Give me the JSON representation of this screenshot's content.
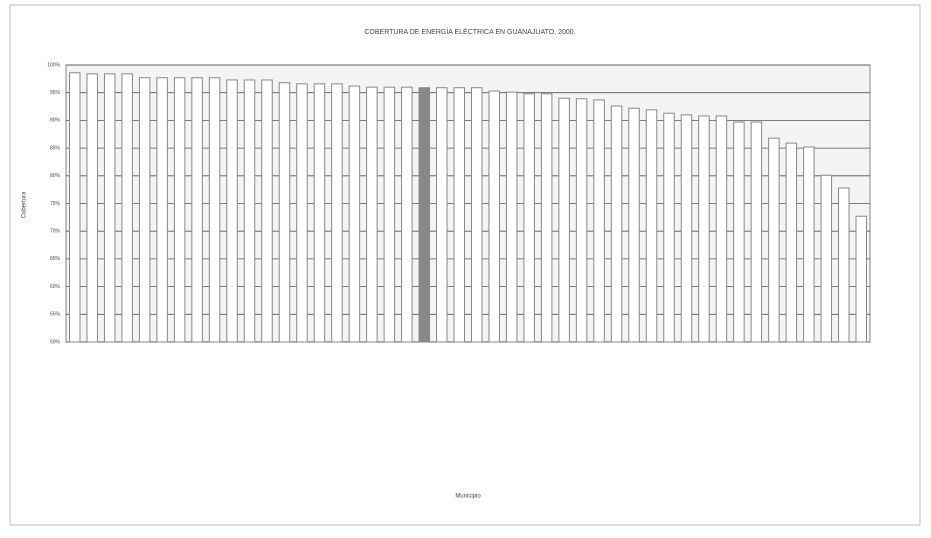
{
  "chart_data": {
    "type": "bar",
    "title": "COBERTURA DE ENERGÍA ELÉCTRICA EN GUANAJUATO, 2000.",
    "ylabel": "Cobertura",
    "xlabel": "Municipio",
    "categories": [
      null,
      null,
      null,
      null,
      null,
      null,
      null,
      null,
      null,
      null,
      null,
      null,
      null,
      null,
      null,
      null,
      null,
      null,
      null,
      null,
      null,
      null,
      null,
      null,
      null,
      null,
      null,
      null,
      null,
      null,
      null,
      null,
      null,
      null,
      null,
      null,
      null,
      null,
      null,
      null,
      null,
      null,
      null,
      null,
      null,
      null
    ],
    "values": [
      98.6,
      98.4,
      98.4,
      98.4,
      97.7,
      97.7,
      97.7,
      97.7,
      97.7,
      97.3,
      97.3,
      97.3,
      96.8,
      96.6,
      96.6,
      96.6,
      96.2,
      96.0,
      96.0,
      96.0,
      95.9,
      95.9,
      95.9,
      95.9,
      95.3,
      95.1,
      94.8,
      94.8,
      94.0,
      93.9,
      93.7,
      92.6,
      92.2,
      91.9,
      91.3,
      91.0,
      90.8,
      90.8,
      89.7,
      89.7,
      86.8,
      85.9,
      85.2,
      80.1,
      77.8,
      72.7
    ],
    "color": "#ffffff",
    "colors": [
      "#fff",
      "#fff",
      "#fff",
      "#fff",
      "#fff",
      "#fff",
      "#fff",
      "#fff",
      "#fff",
      "#fff",
      "#fff",
      "#fff",
      "#fff",
      "#fff",
      "#fff",
      "#fff",
      "#fff",
      "#fff",
      "#fff",
      "#fff",
      "#888",
      "#fff",
      "#fff",
      "#fff",
      "#fff",
      "#fff",
      "#fff",
      "#fff",
      "#fff",
      "#fff",
      "#fff",
      "#fff",
      "#fff",
      "#fff",
      "#fff",
      "#fff",
      "#fff",
      "#fff",
      "#fff",
      "#fff",
      "#fff",
      "#fff",
      "#fff",
      "#fff",
      "#fff",
      "#fff"
    ],
    "ylim": [
      50,
      100
    ],
    "yticks": [
      {
        "value": 50,
        "label": "50%"
      },
      {
        "value": 55,
        "label": "55%"
      },
      {
        "value": 60,
        "label": "60%"
      },
      {
        "value": 65,
        "label": "65%"
      },
      {
        "value": 70,
        "label": "70%"
      },
      {
        "value": 75,
        "label": "75%"
      },
      {
        "value": 80,
        "label": "80%"
      },
      {
        "value": 85,
        "label": "85%"
      },
      {
        "value": 90,
        "label": "90%"
      },
      {
        "value": 95,
        "label": "95%"
      },
      {
        "value": 100,
        "label": "100%"
      }
    ],
    "grid": true
  }
}
